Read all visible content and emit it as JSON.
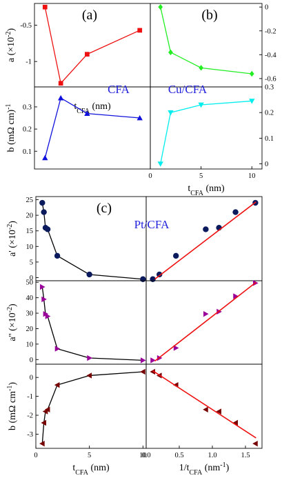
{
  "chart_data": [
    {
      "id": "a",
      "type": "line",
      "panel_label": "(a)",
      "xlabel": "t",
      "xlabel_sub": "CFA",
      "xunit": " (nm)",
      "ylabel": "a (×10",
      "ylabel_sup": "-2",
      "ylabel_end": ")",
      "xlim": [
        0,
        22
      ],
      "ylim": [
        -1.35,
        -0.2
      ],
      "xticks": [
        0,
        5,
        10,
        15,
        20
      ],
      "yticks": [
        -1.0,
        -0.5
      ],
      "series": [
        {
          "color": "#ee1111",
          "marker": "square",
          "x": [
            2,
            5,
            10,
            20
          ],
          "y": [
            -0.25,
            -1.3,
            -0.9,
            -0.57
          ]
        }
      ]
    },
    {
      "id": "b_cfa",
      "type": "line",
      "annotation": "CFA",
      "xlim": [
        0,
        22
      ],
      "ylim": [
        0.02,
        0.39
      ],
      "yticks": [
        0.1,
        0.2,
        0.3
      ],
      "ylabel": "b  (mΩ cm)",
      "ylabel_sup": "-1",
      "series": [
        {
          "color": "#1010dd",
          "marker": "triangle-up",
          "x": [
            2,
            5,
            10,
            20
          ],
          "y": [
            0.07,
            0.34,
            0.27,
            0.25
          ]
        }
      ]
    },
    {
      "id": "b",
      "type": "line",
      "panel_label": "(b)",
      "xlim": [
        0,
        11
      ],
      "ylim": [
        -0.67,
        0.03
      ],
      "yticks": [
        0.0,
        -0.2,
        -0.4,
        -0.6
      ],
      "series": [
        {
          "color": "#22ee22",
          "marker": "diamond",
          "x": [
            1,
            2,
            5,
            10
          ],
          "y": [
            0.0,
            -0.38,
            -0.51,
            -0.56
          ]
        }
      ]
    },
    {
      "id": "b_cu",
      "type": "line",
      "annotation": "Cu/CFA",
      "xlim": [
        0,
        11
      ],
      "ylim": [
        -0.02,
        0.3
      ],
      "xticks": [
        0,
        5,
        10
      ],
      "yticks": [
        0.0,
        0.1,
        0.2,
        0.3
      ],
      "xlabel": "t",
      "xlabel_sub": "CFA",
      "xunit": " (nm)",
      "series": [
        {
          "color": "#00eeee",
          "marker": "triangle-down",
          "x": [
            1,
            2,
            5,
            10
          ],
          "y": [
            0.0,
            0.2,
            0.23,
            0.245
          ]
        }
      ]
    },
    {
      "id": "c_ap_t",
      "type": "line",
      "panel_label": "(c)",
      "xlim": [
        0,
        10.3
      ],
      "ylim": [
        -1,
        26
      ],
      "yticks": [
        0,
        5,
        10,
        15,
        20,
        25
      ],
      "ylabel": "a' (×10",
      "ylabel_sup": "-2",
      "ylabel_end": ")",
      "series": [
        {
          "color": "#0a1a5c",
          "marker": "circle",
          "line_color": "#000000",
          "x": [
            0.6,
            0.75,
            0.9,
            1.1,
            2,
            5,
            10
          ],
          "y": [
            24,
            21,
            16,
            15.5,
            7,
            1,
            -0.5
          ]
        }
      ]
    },
    {
      "id": "c_ap_inv",
      "type": "line",
      "annotation": "Pt/CFA",
      "xlim": [
        0,
        1.75
      ],
      "ylim": [
        -1,
        26
      ],
      "series": [
        {
          "color": "#0a1a5c",
          "marker": "circle",
          "line": false,
          "x": [
            0.1,
            0.2,
            0.45,
            0.9,
            1.1,
            1.35,
            1.65
          ],
          "y": [
            -0.5,
            1,
            7,
            15.5,
            16,
            21,
            24
          ]
        },
        {
          "color": "#ee1111",
          "marker": "none",
          "fit": true,
          "x": [
            0.13,
            1.66
          ],
          "y": [
            -0.5,
            24.3
          ]
        }
      ]
    },
    {
      "id": "c_app_t",
      "type": "line",
      "xlim": [
        0,
        10.3
      ],
      "ylim": [
        -3,
        51
      ],
      "yticks": [
        0,
        10,
        20,
        30,
        40,
        50
      ],
      "ylabel": "a'' (×10",
      "ylabel_sup": "-2",
      "ylabel_end": ")",
      "series": [
        {
          "color": "#990099",
          "marker": "triangle-right",
          "line_color": "#000000",
          "x": [
            0.6,
            0.75,
            0.9,
            1.1,
            2,
            5,
            10
          ],
          "y": [
            47,
            39,
            29.5,
            28,
            7,
            1,
            -0.5
          ]
        }
      ]
    },
    {
      "id": "c_app_inv",
      "type": "line",
      "xlim": [
        0,
        1.75
      ],
      "ylim": [
        -3,
        51
      ],
      "series": [
        {
          "color": "#990099",
          "marker": "triangle-right",
          "line": false,
          "x": [
            0.1,
            0.2,
            0.45,
            0.9,
            1.1,
            1.35,
            1.65
          ],
          "y": [
            -0.5,
            1,
            7.5,
            29.5,
            31,
            41,
            49.5
          ]
        },
        {
          "color": "#ee1111",
          "marker": "none",
          "fit": true,
          "x": [
            0.13,
            1.66
          ],
          "y": [
            -1,
            50
          ]
        }
      ]
    },
    {
      "id": "c_b_t",
      "type": "line",
      "xlim": [
        0,
        10.3
      ],
      "ylim": [
        -3.75,
        0.7
      ],
      "xticks": [
        0,
        5,
        10
      ],
      "yticks": [
        -3,
        -2,
        -1,
        0
      ],
      "xlabel": "t",
      "xlabel_sub": "CFA",
      "xunit": " (nm)",
      "ylabel": "b (mΩ cm",
      "ylabel_sup": "-1",
      "ylabel_end": ")",
      "series": [
        {
          "color": "#770000",
          "marker": "triangle-left",
          "line_color": "#000000",
          "x": [
            0.6,
            0.75,
            0.9,
            1.1,
            2,
            5,
            10
          ],
          "y": [
            -3.5,
            -2.4,
            -1.8,
            -1.7,
            -0.4,
            0.1,
            0.3
          ]
        }
      ]
    },
    {
      "id": "c_b_inv",
      "type": "line",
      "xlim": [
        0,
        1.75
      ],
      "ylim": [
        -3.75,
        0.7
      ],
      "xticks": [
        0.0,
        0.5,
        1.0,
        1.5
      ],
      "xlabel": "1/t",
      "xlabel_sub": "CFA",
      "xunit": " (nm",
      "xunit_sup": "-1",
      "xunit_end": ")",
      "series": [
        {
          "color": "#770000",
          "marker": "triangle-left",
          "line": false,
          "x": [
            0.1,
            0.2,
            0.45,
            0.9,
            1.1,
            1.35,
            1.65
          ],
          "y": [
            0.3,
            0.1,
            -0.4,
            -1.7,
            -1.8,
            -2.4,
            -3.5
          ]
        },
        {
          "color": "#ee1111",
          "marker": "none",
          "fit": true,
          "x": [
            0.1,
            1.66
          ],
          "y": [
            0.35,
            -3.2
          ]
        }
      ]
    }
  ]
}
